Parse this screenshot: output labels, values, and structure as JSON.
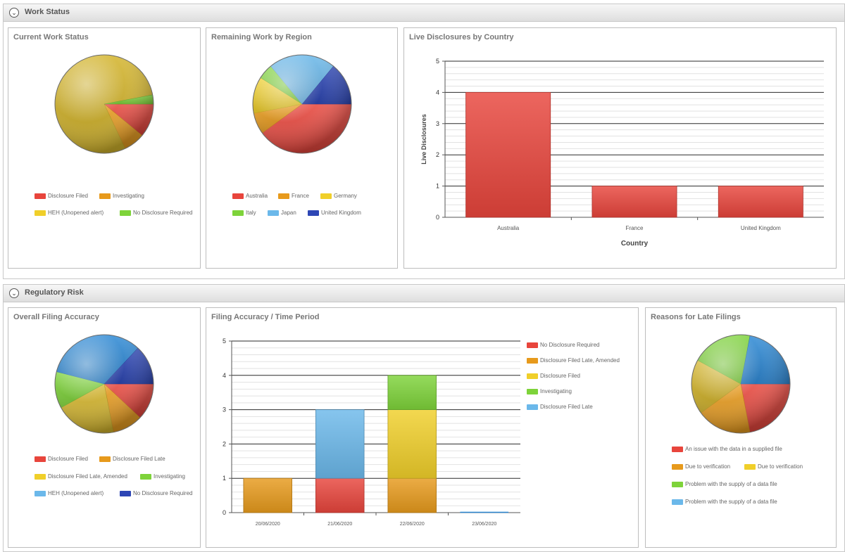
{
  "colors": {
    "red": "#e8453c",
    "orange": "#e79a1c",
    "gold": "#d3b42a",
    "yellow": "#f0cf2a",
    "green": "#7ed33a",
    "lightblue": "#6bb8ea",
    "blue": "#2f8ad6",
    "navy": "#2d46b5"
  },
  "sections": {
    "work_status": {
      "title": "Work Status",
      "toggle_icon": "chevron-down-icon"
    },
    "regulatory_risk": {
      "title": "Regulatory Risk",
      "toggle_icon": "chevron-down-icon"
    }
  },
  "panels": {
    "current_work_status": {
      "title": "Current Work Status",
      "legend": [
        "Disclosure Filed",
        "Investigating",
        "HEH (Unopened alert)",
        "No Disclosure Required"
      ]
    },
    "remaining_work_by_region": {
      "title": "Remaining Work by Region",
      "legend": [
        "Australia",
        "France",
        "Germany",
        "Italy",
        "Japan",
        "United Kingdom"
      ]
    },
    "live_disclosures_by_country": {
      "title": "Live Disclosures by Country"
    },
    "overall_filing_accuracy": {
      "title": "Overall Filing Accuracy",
      "legend": [
        "Disclosure Filed",
        "Disclosure Filed Late",
        "Disclosure Filed Late, Amended",
        "Investigating",
        "HEH (Unopened alert)",
        "No Disclosure Required"
      ]
    },
    "filing_accuracy_time_period": {
      "title": "Filing Accuracy / Time Period",
      "legend": [
        "No Disclosure Required",
        "Disclosure Filed Late, Amended",
        "Disclosure Filed",
        "Investigating",
        "Disclosure Filed Late"
      ]
    },
    "reasons_for_late_filings": {
      "title": "Reasons for Late Filings",
      "legend": [
        "An issue with the data in a supplied file",
        "Due to verification",
        "Due to verification",
        "Problem with the supply of a data file",
        "Problem with the supply of a data file"
      ]
    }
  },
  "chart_data": [
    {
      "id": "current_work_status",
      "type": "pie",
      "title": "Current Work Status",
      "slices": [
        {
          "label": "Disclosure Filed",
          "value": 11,
          "color": "#e8453c"
        },
        {
          "label": "Investigating",
          "value": 7,
          "color": "#e79a1c"
        },
        {
          "label": "HEH (Unopened alert)",
          "value": 79,
          "color": "#d3b42a"
        },
        {
          "label": "No Disclosure Required",
          "value": 3,
          "color": "#7ed33a"
        }
      ],
      "legend_position": "bottom"
    },
    {
      "id": "remaining_work_by_region",
      "type": "pie",
      "title": "Remaining Work by Region",
      "slices": [
        {
          "label": "Australia",
          "value": 40,
          "color": "#e8453c"
        },
        {
          "label": "France",
          "value": 7,
          "color": "#e79a1c"
        },
        {
          "label": "Germany",
          "value": 12,
          "color": "#f0cf2a"
        },
        {
          "label": "Italy",
          "value": 5,
          "color": "#7ed33a"
        },
        {
          "label": "Japan",
          "value": 22,
          "color": "#6bb8ea"
        },
        {
          "label": "United Kingdom",
          "value": 14,
          "color": "#2d46b5"
        }
      ],
      "legend_position": "bottom"
    },
    {
      "id": "live_disclosures_by_country",
      "type": "bar",
      "title": "Live Disclosures by Country",
      "categories": [
        "Australia",
        "France",
        "United Kingdom"
      ],
      "values": [
        4,
        1,
        1
      ],
      "xlabel": "Country",
      "ylabel": "Live Disclosures",
      "ylim": [
        0,
        5
      ],
      "yticks": [
        0,
        1,
        2,
        3,
        4,
        5
      ],
      "bar_color": "#e8453c",
      "grid": true
    },
    {
      "id": "overall_filing_accuracy",
      "type": "pie",
      "title": "Overall Filing Accuracy",
      "slices": [
        {
          "label": "Disclosure Filed",
          "value": 12,
          "color": "#e8453c"
        },
        {
          "label": "Disclosure Filed Late",
          "value": 10,
          "color": "#e79a1c"
        },
        {
          "label": "Disclosure Filed Late, Amended",
          "value": 20,
          "color": "#d3b42a"
        },
        {
          "label": "Investigating",
          "value": 12,
          "color": "#7ed33a"
        },
        {
          "label": "HEH (Unopened alert)",
          "value": 33,
          "color": "#2f8ad6"
        },
        {
          "label": "No Disclosure Required",
          "value": 13,
          "color": "#2d46b5"
        }
      ],
      "legend_position": "bottom"
    },
    {
      "id": "filing_accuracy_time_period",
      "type": "bar",
      "stacked": true,
      "title": "Filing Accuracy / Time Period",
      "categories": [
        "20/06/2020",
        "21/06/2020",
        "22/06/2020",
        "23/06/2020"
      ],
      "series": [
        {
          "name": "No Disclosure Required",
          "color": "#e8453c",
          "values": [
            0,
            1,
            0,
            0
          ]
        },
        {
          "name": "Disclosure Filed Late, Amended",
          "color": "#e79a1c",
          "values": [
            1,
            0,
            1,
            0
          ]
        },
        {
          "name": "Disclosure Filed",
          "color": "#f0cf2a",
          "values": [
            0,
            0,
            2,
            0
          ]
        },
        {
          "name": "Investigating",
          "color": "#7ed33a",
          "values": [
            0,
            0,
            1,
            0
          ]
        },
        {
          "name": "Disclosure Filed Late",
          "color": "#6bb8ea",
          "values": [
            0,
            2,
            0,
            0
          ]
        }
      ],
      "ylim": [
        0,
        5
      ],
      "yticks": [
        0,
        1,
        2,
        3,
        4,
        5
      ],
      "grid": true,
      "legend_position": "right"
    },
    {
      "id": "reasons_for_late_filings",
      "type": "pie",
      "title": "Reasons for Late Filings",
      "slices": [
        {
          "label": "An issue with the data in a supplied file",
          "value": 22,
          "color": "#e8453c"
        },
        {
          "label": "Due to verification",
          "value": 18,
          "color": "#e79a1c"
        },
        {
          "label": "Due to verification",
          "value": 18,
          "color": "#d3b42a"
        },
        {
          "label": "Problem with the supply of a data file",
          "value": 20,
          "color": "#7ed33a"
        },
        {
          "label": "Problem with the supply of a data file",
          "value": 22,
          "color": "#2f8ad6"
        }
      ],
      "legend_position": "bottom"
    }
  ]
}
